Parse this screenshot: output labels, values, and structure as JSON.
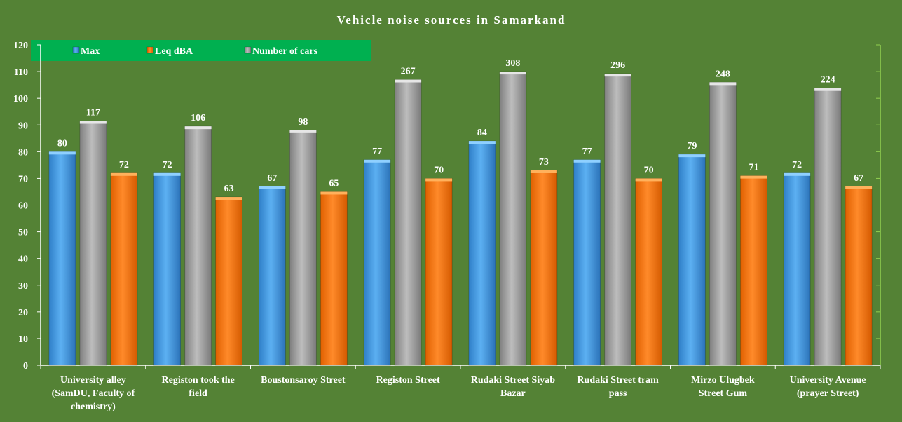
{
  "chart_data": {
    "type": "bar",
    "title": "Vehicle noise sources in Samarkand",
    "xlabel": "",
    "ylabel": "",
    "ylim": [
      0,
      120
    ],
    "yticks": [
      0,
      10,
      20,
      30,
      40,
      50,
      60,
      70,
      80,
      90,
      100,
      110,
      120
    ],
    "legend_position": "top-left",
    "categories": [
      [
        "University alley",
        "(SamDU, Faculty of",
        "chemistry)"
      ],
      [
        "Registon took the",
        "field"
      ],
      [
        "Boustonsaroy Street"
      ],
      [
        "Registon Street"
      ],
      [
        "Rudaki Street Siyab",
        "Bazar"
      ],
      [
        "Rudaki Street tram",
        "pass"
      ],
      [
        "Mirzo Ulugbek",
        "Street Gum"
      ],
      [
        "University Avenue",
        "(prayer Street)"
      ]
    ],
    "series": [
      {
        "name": "Max",
        "color": "#4a9fe3",
        "values": [
          80,
          72,
          67,
          77,
          84,
          77,
          79,
          72
        ],
        "labels": [
          "80",
          "72",
          "67",
          "77",
          "84",
          "77",
          "79",
          "72"
        ]
      },
      {
        "name": "Number of cars",
        "color": "#a6a6a6",
        "values": [
          91.5,
          89.5,
          88,
          107,
          110,
          109.2,
          106,
          103.8
        ],
        "labels": [
          "117",
          "106",
          "98",
          "267",
          "308",
          "296",
          "248",
          "224"
        ]
      },
      {
        "name": "Leq dBA",
        "color": "#ff7a12",
        "values": [
          72,
          63,
          65,
          70,
          73,
          70,
          71,
          67
        ],
        "labels": [
          "72",
          "63",
          "65",
          "70",
          "73",
          "70",
          "71",
          "67"
        ]
      }
    ],
    "legend_order": [
      "Max",
      "Leq dBA",
      "Number of cars"
    ]
  },
  "colors": {
    "background": "#548235",
    "legend_background": "#00b050",
    "axis": "#ffffff",
    "secondary_axis": "#92d050"
  }
}
